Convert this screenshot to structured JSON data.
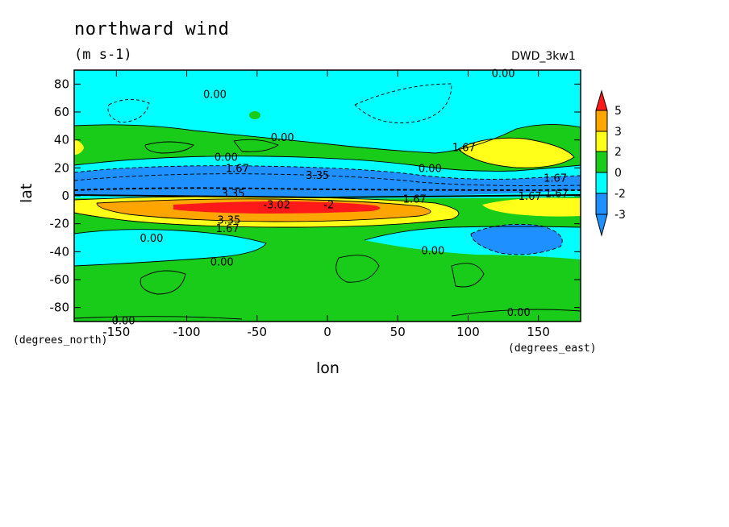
{
  "chart_data": {
    "type": "heatmap",
    "title": "northward wind",
    "units": "(m s-1)",
    "dataset": "DWD_3kw1",
    "xlabel": "lon",
    "ylabel": "lat",
    "x_unit": "(degrees_east)",
    "y_unit": "(degrees_north)",
    "xlim": [
      -180,
      180
    ],
    "ylim": [
      -90,
      90
    ],
    "x_ticks": [
      -150,
      -100,
      -50,
      0,
      50,
      100,
      150
    ],
    "y_ticks": [
      80,
      60,
      40,
      20,
      0,
      -20,
      -40,
      -60,
      -80
    ],
    "x_tick_labels": [
      "-150",
      "-100",
      "-50",
      "0",
      "50",
      "100",
      "150"
    ],
    "y_tick_labels": [
      "80",
      "60",
      "40",
      "20",
      "0",
      "-20",
      "-40",
      "-60",
      "-80"
    ],
    "colorbar": {
      "labels": [
        "5",
        "3",
        "2",
        "0",
        "-2",
        "-3"
      ],
      "colors": [
        "#ff1a1a",
        "#ffa500",
        "#ffff1a",
        "#1acc1a",
        "#00ffff",
        "#1e90ff",
        "#1e90ff"
      ]
    },
    "contour_labels": [
      {
        "text": "0.00",
        "lon": -80,
        "lat": 73
      },
      {
        "text": "0.00",
        "lon": 125,
        "lat": 88
      },
      {
        "text": "0.00",
        "lon": -32,
        "lat": 42
      },
      {
        "text": "0.00",
        "lon": -72,
        "lat": 28
      },
      {
        "text": "1.67",
        "lon": -64,
        "lat": 20
      },
      {
        "text": "3.35",
        "lon": -7,
        "lat": 15
      },
      {
        "text": "1.67",
        "lon": 97,
        "lat": 35
      },
      {
        "text": "0.00",
        "lon": 73,
        "lat": 20
      },
      {
        "text": "1.67",
        "lon": 162,
        "lat": 13
      },
      {
        "text": "1.67",
        "lon": 163,
        "lat": 2
      },
      {
        "text": "1.67",
        "lon": 144,
        "lat": 0
      },
      {
        "text": "1.67",
        "lon": 62,
        "lat": -2
      },
      {
        "text": "3.35",
        "lon": -67,
        "lat": 2
      },
      {
        "text": "-3.02",
        "lon": -36,
        "lat": -6
      },
      {
        "text": "-2",
        "lon": 1,
        "lat": -6
      },
      {
        "text": "3.35",
        "lon": -70,
        "lat": -17
      },
      {
        "text": "1.67",
        "lon": -71,
        "lat": -23
      },
      {
        "text": "0.00",
        "lon": -125,
        "lat": -30
      },
      {
        "text": "0.00",
        "lon": -75,
        "lat": -47
      },
      {
        "text": "0.00",
        "lon": 75,
        "lat": -39
      },
      {
        "text": "0.00",
        "lon": 136,
        "lat": -83
      },
      {
        "text": "0.00",
        "lon": -145,
        "lat": -89
      }
    ],
    "grid": false,
    "legend": "right colorbar"
  }
}
